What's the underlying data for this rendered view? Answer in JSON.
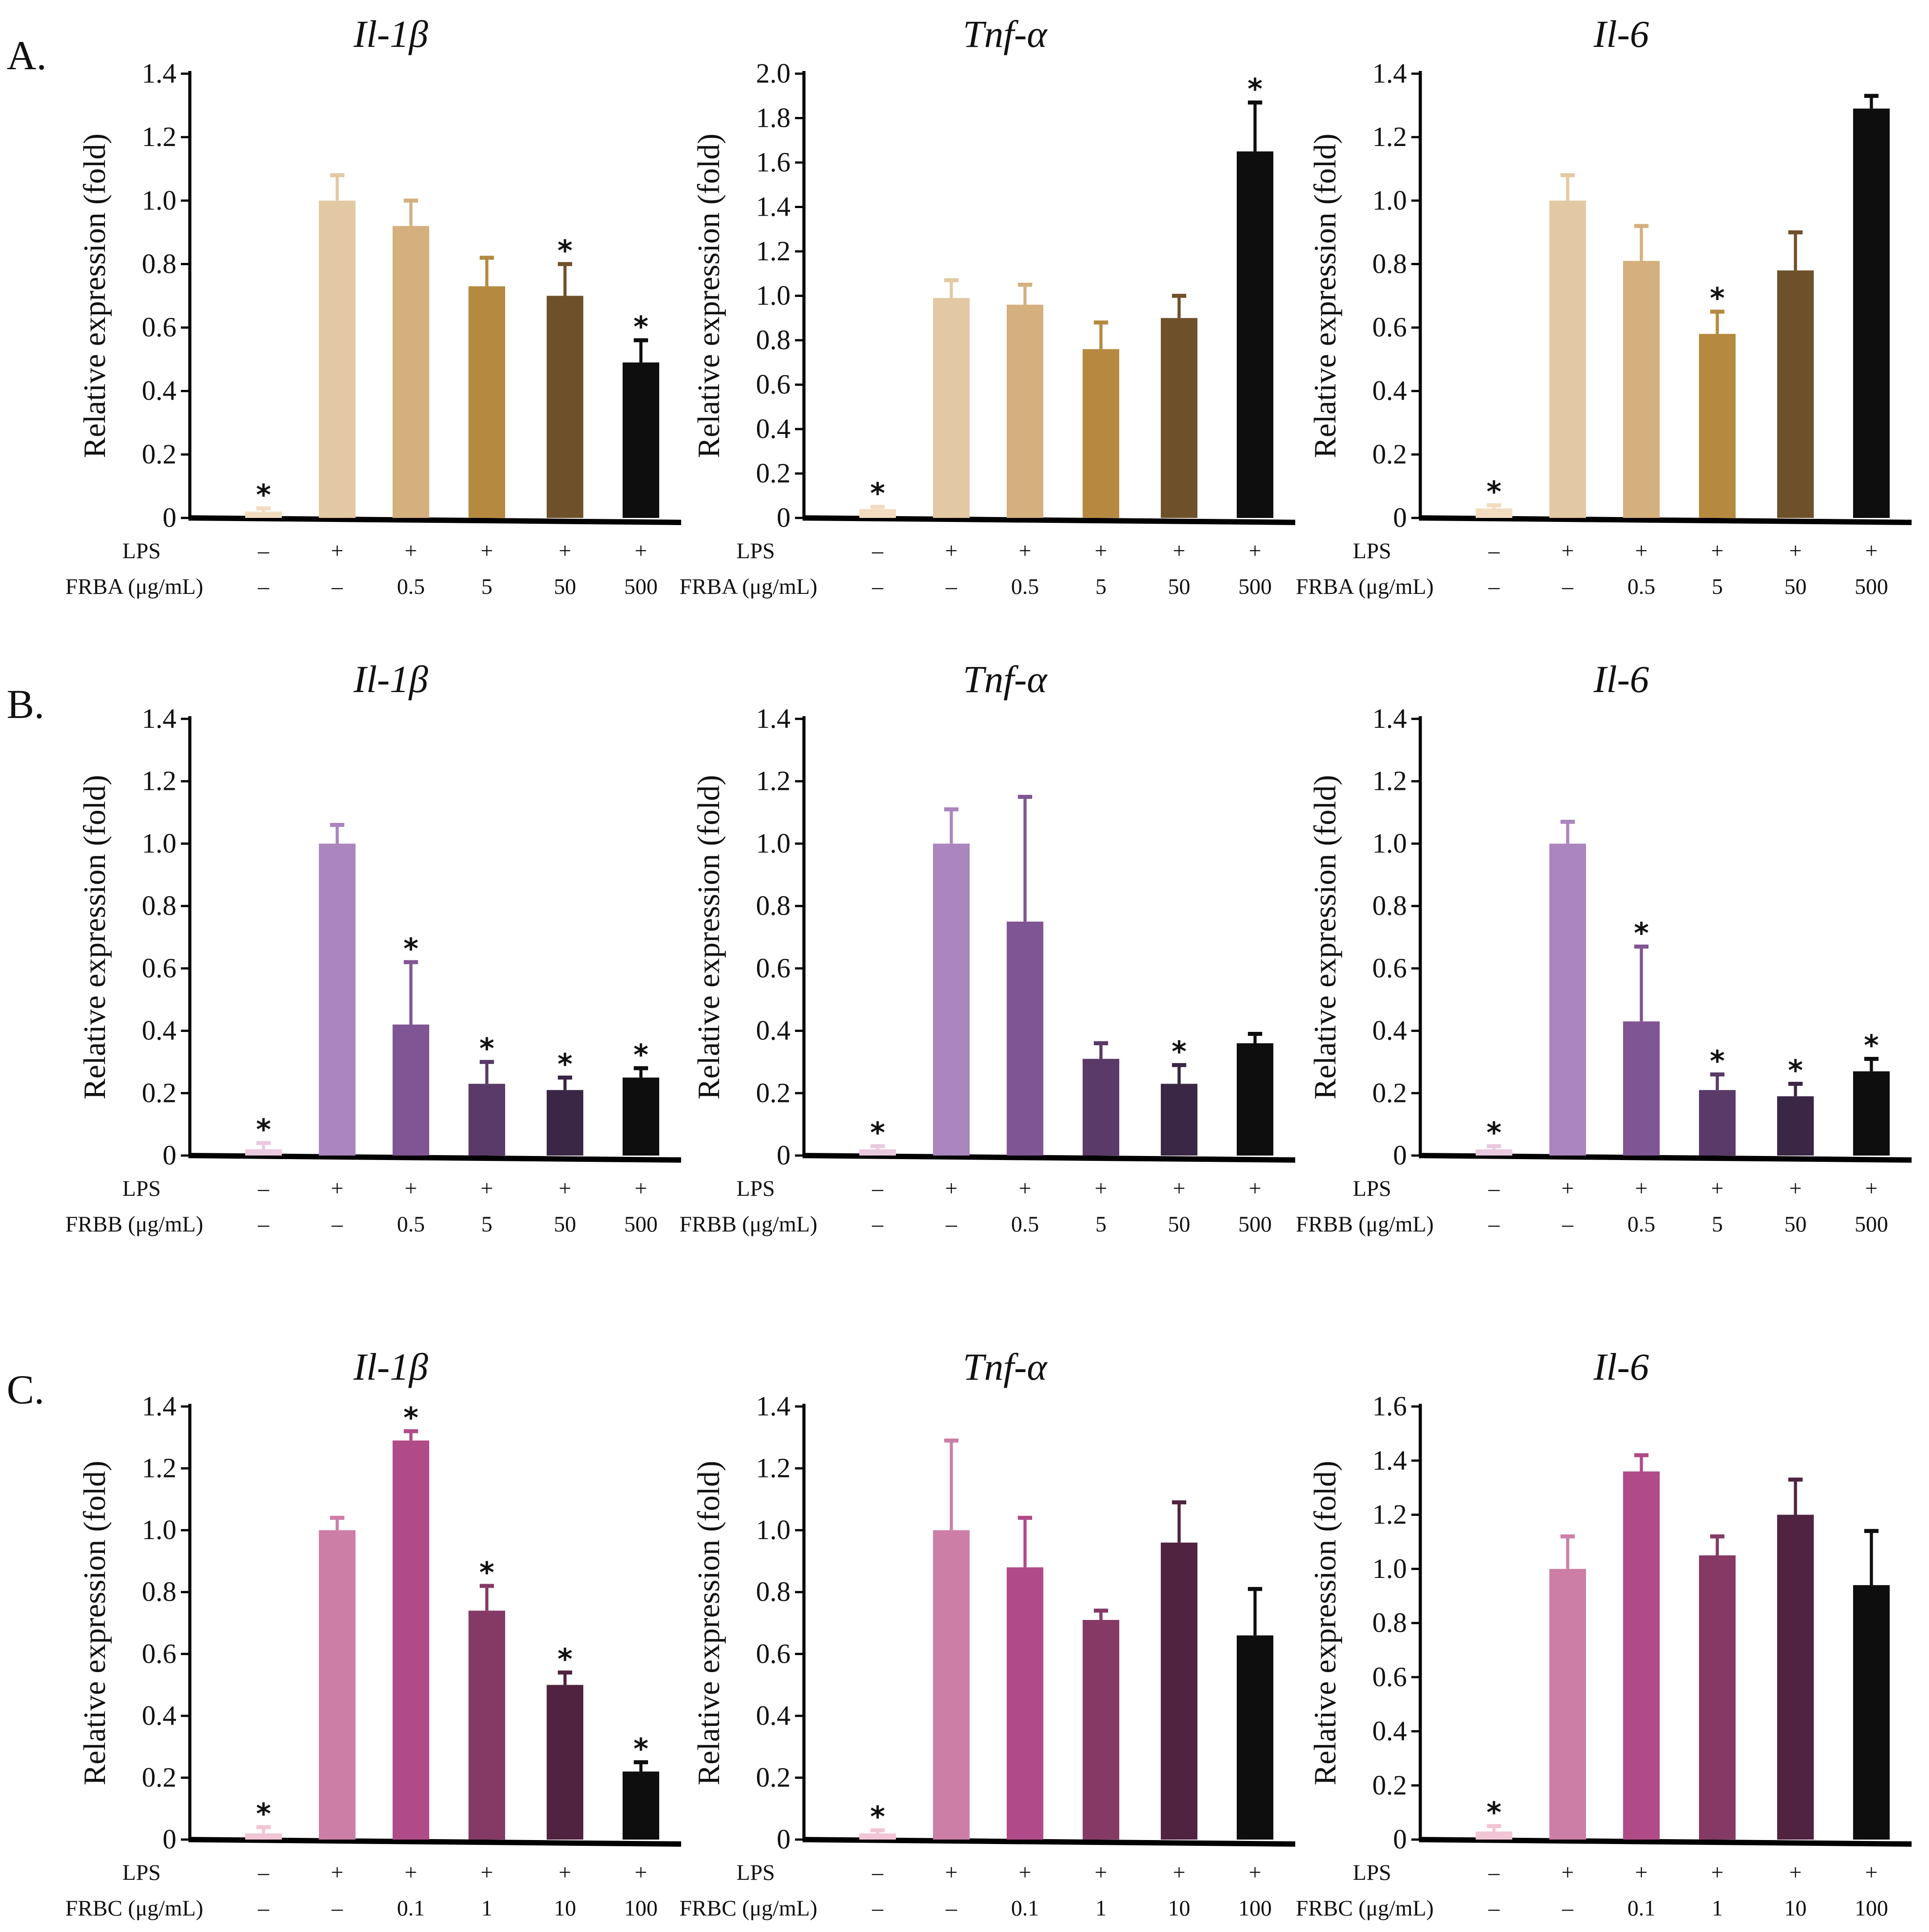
{
  "figure": {
    "panel_letters": [
      "A.",
      "B.",
      "C."
    ],
    "common_ylabel": "Relative expression (fold)",
    "row_labels": {
      "lps": "LPS",
      "frba": "FRBA  (μg/mL)",
      "frbb": "FRBB  (μg/mL)",
      "frbc": "FRBC  (μg/mL)"
    },
    "lps_values": [
      "–",
      "+",
      "+",
      "+",
      "+",
      "+"
    ],
    "doses_ab": [
      "–",
      "–",
      "0.5",
      "5",
      "50",
      "500"
    ],
    "doses_c": [
      "–",
      "–",
      "0.1",
      "1",
      "10",
      "100"
    ]
  },
  "palettes": {
    "A": [
      "#f2dcc0",
      "#e2c9a3",
      "#d4b07e",
      "#b58a40",
      "#6e512b",
      "#0e0e0e"
    ],
    "B": [
      "#e9c9de",
      "#ab85bd",
      "#805593",
      "#5a3a69",
      "#3a2645",
      "#0e0e0e"
    ],
    "C": [
      "#f1c5d5",
      "#cc7ea6",
      "#b04b87",
      "#853a66",
      "#502340",
      "#0e0e0e"
    ]
  },
  "chart_data": [
    {
      "panel": "A",
      "type": "bar",
      "title": "Il-1β",
      "ylabel": "Relative expression (fold)",
      "ylim": [
        0,
        1.4
      ],
      "yticks": [
        "0",
        "0.2",
        "0.4",
        "0.6",
        "0.8",
        "1.0",
        "1.2",
        "1.4"
      ],
      "categories": [
        "Control",
        "LPS",
        "LPS+FRBA 0.5",
        "LPS+FRBA 5",
        "LPS+FRBA 50",
        "LPS+FRBA 500"
      ],
      "values": [
        0.02,
        1.0,
        0.92,
        0.73,
        0.7,
        0.49
      ],
      "errors": [
        0.01,
        0.08,
        0.08,
        0.09,
        0.1,
        0.07
      ],
      "significant": [
        true,
        false,
        false,
        false,
        true,
        true
      ]
    },
    {
      "panel": "A",
      "type": "bar",
      "title": "Tnf-α",
      "ylabel": "Relative expression (fold)",
      "ylim": [
        0,
        2.0
      ],
      "yticks": [
        "0",
        "0.2",
        "0.4",
        "0.6",
        "0.8",
        "1.0",
        "1.2",
        "1.4",
        "1.6",
        "1.8",
        "2.0"
      ],
      "categories": [
        "Control",
        "LPS",
        "LPS+FRBA 0.5",
        "LPS+FRBA 5",
        "LPS+FRBA 50",
        "LPS+FRBA 500"
      ],
      "values": [
        0.04,
        0.99,
        0.96,
        0.76,
        0.9,
        1.65
      ],
      "errors": [
        0.01,
        0.08,
        0.09,
        0.12,
        0.1,
        0.22
      ],
      "significant": [
        true,
        false,
        false,
        false,
        false,
        true
      ]
    },
    {
      "panel": "A",
      "type": "bar",
      "title": "Il-6",
      "ylabel": "Relative expression (fold)",
      "ylim": [
        0,
        1.4
      ],
      "yticks": [
        "0",
        "0.2",
        "0.4",
        "0.6",
        "0.8",
        "1.0",
        "1.2",
        "1.4"
      ],
      "categories": [
        "Control",
        "LPS",
        "LPS+FRBA 0.5",
        "LPS+FRBA 5",
        "LPS+FRBA 50",
        "LPS+FRBA 500"
      ],
      "values": [
        0.03,
        1.0,
        0.81,
        0.58,
        0.78,
        1.29
      ],
      "errors": [
        0.01,
        0.08,
        0.11,
        0.07,
        0.12,
        0.04
      ],
      "significant": [
        true,
        false,
        false,
        true,
        false,
        false
      ]
    },
    {
      "panel": "B",
      "type": "bar",
      "title": "Il-1β",
      "ylabel": "Relative expression (fold)",
      "ylim": [
        0,
        1.4
      ],
      "yticks": [
        "0",
        "0.2",
        "0.4",
        "0.6",
        "0.8",
        "1.0",
        "1.2",
        "1.4"
      ],
      "categories": [
        "Control",
        "LPS",
        "LPS+FRBB 0.5",
        "LPS+FRBB 5",
        "LPS+FRBB 50",
        "LPS+FRBB 500"
      ],
      "values": [
        0.02,
        1.0,
        0.42,
        0.23,
        0.21,
        0.25
      ],
      "errors": [
        0.02,
        0.06,
        0.2,
        0.07,
        0.04,
        0.03
      ],
      "significant": [
        true,
        false,
        true,
        true,
        true,
        true
      ]
    },
    {
      "panel": "B",
      "type": "bar",
      "title": "Tnf-α",
      "ylabel": "Relative expression (fold)",
      "ylim": [
        0,
        1.4
      ],
      "yticks": [
        "0",
        "0.2",
        "0.4",
        "0.6",
        "0.8",
        "1.0",
        "1.2",
        "1.4"
      ],
      "categories": [
        "Control",
        "LPS",
        "LPS+FRBB 0.5",
        "LPS+FRBB 5",
        "LPS+FRBB 50",
        "LPS+FRBB 500"
      ],
      "values": [
        0.02,
        1.0,
        0.75,
        0.31,
        0.23,
        0.36
      ],
      "errors": [
        0.01,
        0.11,
        0.4,
        0.05,
        0.06,
        0.03
      ],
      "significant": [
        true,
        false,
        false,
        false,
        true,
        false
      ]
    },
    {
      "panel": "B",
      "type": "bar",
      "title": "Il-6",
      "ylabel": "Relative expression (fold)",
      "ylim": [
        0,
        1.4
      ],
      "yticks": [
        "0",
        "0.2",
        "0.4",
        "0.6",
        "0.8",
        "1.0",
        "1.2",
        "1.4"
      ],
      "categories": [
        "Control",
        "LPS",
        "LPS+FRBB 0.5",
        "LPS+FRBB 5",
        "LPS+FRBB 50",
        "LPS+FRBB 500"
      ],
      "values": [
        0.02,
        1.0,
        0.43,
        0.21,
        0.19,
        0.27
      ],
      "errors": [
        0.01,
        0.07,
        0.24,
        0.05,
        0.04,
        0.04
      ],
      "significant": [
        true,
        false,
        true,
        true,
        true,
        true
      ]
    },
    {
      "panel": "C",
      "type": "bar",
      "title": "Il-1β",
      "ylabel": "Relative expression (fold)",
      "ylim": [
        0,
        1.4
      ],
      "yticks": [
        "0",
        "0.2",
        "0.4",
        "0.6",
        "0.8",
        "1.0",
        "1.2",
        "1.4"
      ],
      "categories": [
        "Control",
        "LPS",
        "LPS+FRBC 0.1",
        "LPS+FRBC 1",
        "LPS+FRBC 10",
        "LPS+FRBC 100"
      ],
      "values": [
        0.02,
        1.0,
        1.29,
        0.74,
        0.5,
        0.22
      ],
      "errors": [
        0.02,
        0.04,
        0.03,
        0.08,
        0.04,
        0.03
      ],
      "significant": [
        true,
        false,
        true,
        true,
        true,
        true
      ]
    },
    {
      "panel": "C",
      "type": "bar",
      "title": "Tnf-α",
      "ylabel": "Relative expression (fold)",
      "ylim": [
        0,
        1.4
      ],
      "yticks": [
        "0",
        "0.2",
        "0.4",
        "0.6",
        "0.8",
        "1.0",
        "1.2",
        "1.4"
      ],
      "categories": [
        "Control",
        "LPS",
        "LPS+FRBC 0.1",
        "LPS+FRBC 1",
        "LPS+FRBC 10",
        "LPS+FRBC 100"
      ],
      "values": [
        0.02,
        1.0,
        0.88,
        0.71,
        0.96,
        0.66
      ],
      "errors": [
        0.01,
        0.29,
        0.16,
        0.03,
        0.13,
        0.15
      ],
      "significant": [
        true,
        false,
        false,
        false,
        false,
        false
      ]
    },
    {
      "panel": "C",
      "type": "bar",
      "title": "Il-6",
      "ylabel": "Relative expression (fold)",
      "ylim": [
        0,
        1.6
      ],
      "yticks": [
        "0",
        "0.2",
        "0.4",
        "0.6",
        "0.8",
        "1.0",
        "1.2",
        "1.4",
        "1.6"
      ],
      "categories": [
        "Control",
        "LPS",
        "LPS+FRBC 0.1",
        "LPS+FRBC 1",
        "LPS+FRBC 10",
        "LPS+FRBC 100"
      ],
      "values": [
        0.03,
        1.0,
        1.36,
        1.05,
        1.2,
        0.94
      ],
      "errors": [
        0.02,
        0.12,
        0.06,
        0.07,
        0.13,
        0.2
      ],
      "significant": [
        true,
        false,
        false,
        false,
        false,
        false
      ]
    }
  ]
}
